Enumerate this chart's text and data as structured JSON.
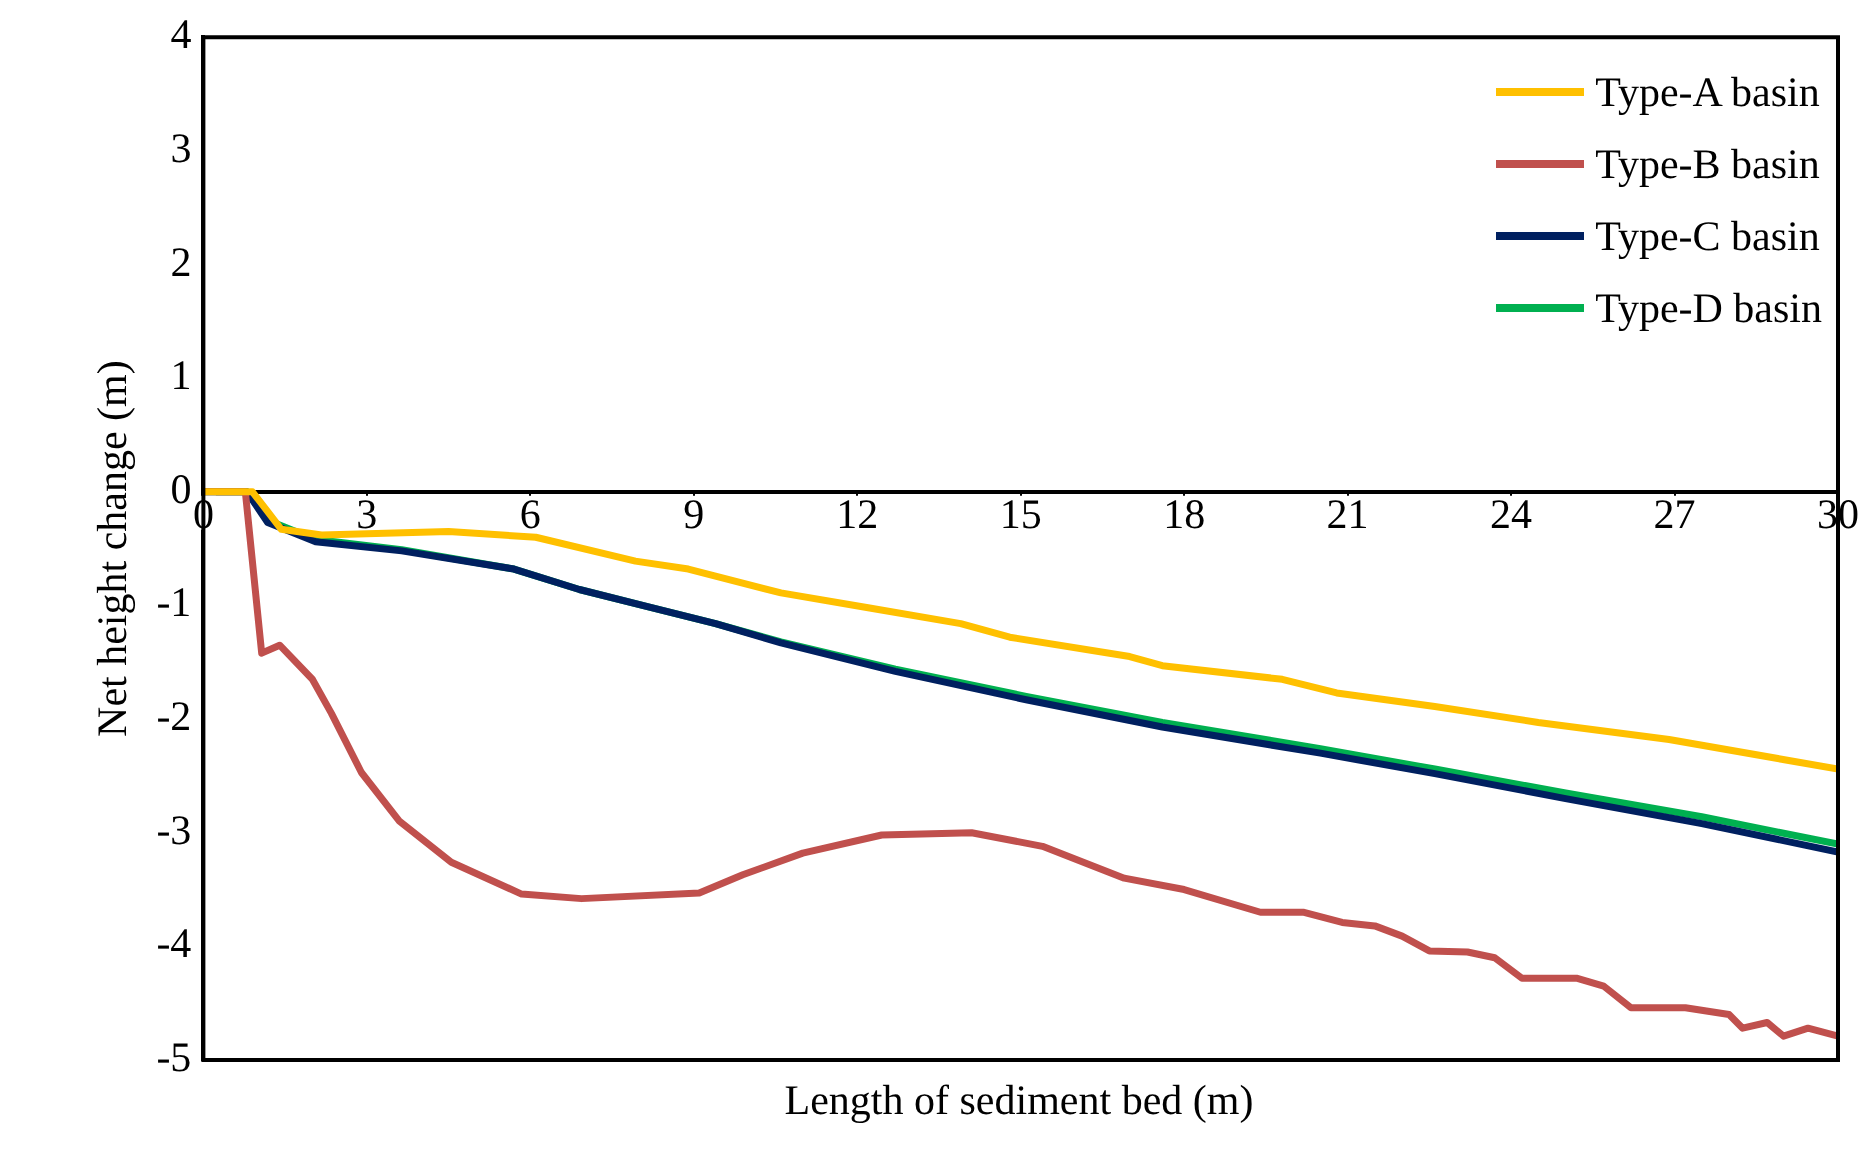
{
  "chart_data": {
    "type": "line",
    "xlabel": "Length of sediment bed (m)",
    "ylabel": "Net height change (m)",
    "xlim": [
      0,
      30
    ],
    "xticks": [
      0,
      3,
      6,
      9,
      12,
      15,
      18,
      21,
      24,
      27,
      30
    ],
    "ylim": [
      -5,
      4
    ],
    "yticks": [
      -5,
      -4,
      -3,
      -2,
      -1,
      0,
      1,
      2,
      3,
      4
    ],
    "grid": false,
    "legend": "top right",
    "marker": "none",
    "line_style": "solid",
    "series": [
      {
        "name": "Type-A basin",
        "color": "#ffc000",
        "x": [
          0,
          0.9,
          1.43,
          2.17,
          4.5,
          6.1,
          7.93,
          8.9,
          10.6,
          12.2,
          13.9,
          14.8,
          17,
          17.6,
          19.8,
          20.8,
          22.6,
          24.5,
          26.9,
          30
        ],
        "values": [
          0,
          0,
          -0.33,
          -0.38,
          -0.35,
          -0.4,
          -0.61,
          -0.68,
          -0.89,
          -1.02,
          -1.16,
          -1.28,
          -1.45,
          -1.53,
          -1.65,
          -1.77,
          -1.89,
          -2.03,
          -2.18,
          -2.44
        ]
      },
      {
        "name": "Type-B basin",
        "color": "#c0504d",
        "x": [
          0,
          0.77,
          1.07,
          1.4,
          2.0,
          2.35,
          2.9,
          3.6,
          4.55,
          5.84,
          6.94,
          9.1,
          9.9,
          11,
          12.45,
          14.1,
          15.4,
          16.9,
          18,
          19.4,
          20.2,
          20.9,
          21.5,
          22,
          22.5,
          23.2,
          23.7,
          24.2,
          25.2,
          25.7,
          26.2,
          27.2,
          28,
          28.25,
          28.7,
          29,
          29.45,
          30
        ],
        "values": [
          0,
          0,
          -1.42,
          -1.35,
          -1.65,
          -1.95,
          -2.47,
          -2.9,
          -3.26,
          -3.54,
          -3.58,
          -3.53,
          -3.37,
          -3.18,
          -3.02,
          -3.0,
          -3.12,
          -3.4,
          -3.5,
          -3.7,
          -3.7,
          -3.79,
          -3.82,
          -3.91,
          -4.04,
          -4.05,
          -4.1,
          -4.28,
          -4.28,
          -4.35,
          -4.54,
          -4.54,
          -4.6,
          -4.72,
          -4.67,
          -4.79,
          -4.72,
          -4.79
        ]
      },
      {
        "name": "Type-C basin",
        "color": "#002060",
        "x": [
          0,
          0.8,
          1.18,
          2.06,
          3.64,
          5.7,
          6.9,
          8.15,
          9.4,
          10.6,
          12.7,
          15.1,
          17.6,
          20.5,
          22.6,
          25,
          27.5,
          30
        ],
        "values": [
          0,
          0,
          -0.27,
          -0.44,
          -0.52,
          -0.68,
          -0.86,
          -1.01,
          -1.16,
          -1.33,
          -1.58,
          -1.83,
          -2.07,
          -2.3,
          -2.48,
          -2.7,
          -2.92,
          -3.17
        ]
      },
      {
        "name": "Type-D basin",
        "color": "#00b050",
        "x": [
          0,
          0.8,
          1.18,
          2.06,
          3.64,
          5.7,
          6.9,
          8.15,
          9.4,
          10.6,
          12.7,
          15.1,
          17.6,
          20.5,
          22.6,
          25,
          27.5,
          30
        ],
        "values": [
          0,
          0,
          -0.25,
          -0.42,
          -0.51,
          -0.68,
          -0.86,
          -1.01,
          -1.16,
          -1.32,
          -1.56,
          -1.8,
          -2.03,
          -2.26,
          -2.44,
          -2.65,
          -2.86,
          -3.1
        ]
      }
    ]
  }
}
